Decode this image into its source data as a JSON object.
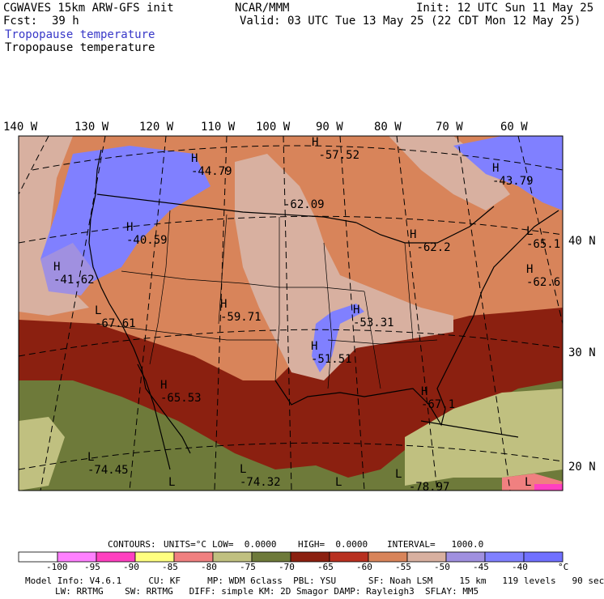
{
  "header": {
    "model": "CGWAVES 15km ARW-GFS init",
    "org": "NCAR/MMM",
    "init": "Init: 12 UTC Sun 11 May 25",
    "fcst_label": "Fcst:",
    "fcst_value": "39 h",
    "valid": "Valid: 03 UTC Tue 13 May 25 (22 CDT Mon 12 May 25)",
    "field_colored": "Tropopause temperature",
    "field_black": "Tropopause temperature"
  },
  "longitude_labels": [
    "140 W",
    "130 W",
    "120 W",
    "110 W",
    "100 W",
    "90 W",
    "80 W",
    "70 W",
    "60 W"
  ],
  "latitude_labels": [
    "40 N",
    "30 N",
    "20 N"
  ],
  "map_labels": [
    {
      "kind": "H",
      "value": "-57.52"
    },
    {
      "kind": "H",
      "value": "-44.79"
    },
    {
      "kind": "H",
      "value": "-43.79"
    },
    {
      "kind": "",
      "value": "-62.09"
    },
    {
      "kind": "H",
      "value": "-40.59"
    },
    {
      "kind": "H",
      "value": "-41.62"
    },
    {
      "kind": "H",
      "value": "-62.2"
    },
    {
      "kind": "L",
      "value": "-65.1"
    },
    {
      "kind": "H",
      "value": "-62.6"
    },
    {
      "kind": "H",
      "value": "-59.71"
    },
    {
      "kind": "L",
      "value": "-67.61"
    },
    {
      "kind": "H",
      "value": "-53.31"
    },
    {
      "kind": "H",
      "value": "-51.51"
    },
    {
      "kind": "H",
      "value": "-65.53"
    },
    {
      "kind": "H",
      "value": "-67.1"
    },
    {
      "kind": "L",
      "value": "-74.45"
    },
    {
      "kind": "L",
      "value": "-74.32"
    },
    {
      "kind": "L",
      "value": "-78.97"
    },
    {
      "kind": "L",
      "value": ""
    },
    {
      "kind": "L",
      "value": ""
    },
    {
      "kind": "L",
      "value": ""
    }
  ],
  "contours": {
    "label": "CONTOURS:",
    "units": "UNITS=°C",
    "low": "LOW=  0.0000",
    "high": "HIGH=  0.0000",
    "interval": "INTERVAL=   1000.0"
  },
  "legend": {
    "colors": [
      "#ffffff",
      "#ff80ff",
      "#ff40c0",
      "#ffff80",
      "#f08080",
      "#c0c080",
      "#6e7a3a",
      "#8b2010",
      "#b83020",
      "#d8845a",
      "#d8b0a0",
      "#a090e0",
      "#8080ff",
      "#7070ff"
    ],
    "ticks": [
      "-100",
      "-95",
      "-90",
      "-85",
      "-80",
      "-75",
      "-70",
      "-65",
      "-60",
      "-55",
      "-50",
      "-45",
      "-40"
    ],
    "unit": "°C"
  },
  "footer": {
    "line1": "Model Info: V4.6.1     CU: KF     MP: WDM 6class  PBL: YSU      SF: Noah LSM     15 km   119 levels   90 sec",
    "line2": "LW: RRTMG    SW: RRTMG   DIFF: simple KM: 2D Smagor DAMP: Rayleigh3  SFLAY: MM5"
  }
}
